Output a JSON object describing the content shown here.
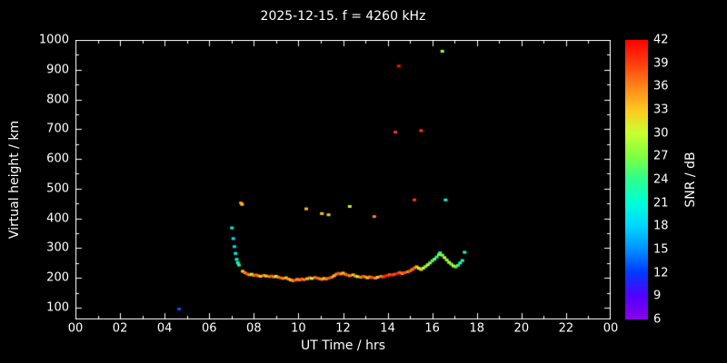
{
  "chart_data": {
    "type": "scatter",
    "title": "2025-12-15. f = 4260 kHz",
    "xlabel": "UT Time / hrs",
    "ylabel": "Virtual height / km",
    "colorbar_label": "SNR / dB",
    "background": "#000000",
    "foreground": "#ffffff",
    "grid": false,
    "legend": "colorbar-right",
    "xlim": [
      0,
      24
    ],
    "ylim": [
      60,
      1000
    ],
    "x_tick_values": [
      0,
      2,
      4,
      6,
      8,
      10,
      12,
      14,
      16,
      18,
      20,
      22,
      24
    ],
    "x_tick_labels": [
      "00",
      "02",
      "04",
      "06",
      "08",
      "10",
      "12",
      "14",
      "16",
      "18",
      "20",
      "22",
      "00"
    ],
    "y_tick_values": [
      100,
      200,
      300,
      400,
      500,
      600,
      700,
      800,
      900,
      1000
    ],
    "colorbar_range": [
      6,
      42
    ],
    "colorbar_tick_values": [
      6,
      9,
      12,
      15,
      18,
      21,
      24,
      27,
      30,
      33,
      36,
      39,
      42
    ],
    "colormap_stops": [
      [
        6,
        "#8800e8"
      ],
      [
        9,
        "#5400ff"
      ],
      [
        12,
        "#0038ff"
      ],
      [
        15,
        "#0090ff"
      ],
      [
        18,
        "#00d4ff"
      ],
      [
        21,
        "#00ffd9"
      ],
      [
        24,
        "#2bff8f"
      ],
      [
        27,
        "#80ff40"
      ],
      [
        30,
        "#c8ff2e"
      ],
      [
        33,
        "#ffc821"
      ],
      [
        36,
        "#ff8519"
      ],
      [
        39,
        "#ff3c0d"
      ],
      [
        42,
        "#ff0000"
      ]
    ],
    "points_format": [
      "ut_hours",
      "virtual_height_km",
      "snr_db"
    ],
    "points": [
      [
        4.65,
        95,
        13
      ],
      [
        7.02,
        368,
        20
      ],
      [
        7.08,
        332,
        19
      ],
      [
        7.13,
        305,
        18
      ],
      [
        7.18,
        282,
        20
      ],
      [
        7.23,
        262,
        21
      ],
      [
        7.28,
        251,
        22
      ],
      [
        7.33,
        243,
        24
      ],
      [
        7.42,
        452,
        36
      ],
      [
        7.47,
        447,
        33
      ],
      [
        7.5,
        222,
        33
      ],
      [
        7.6,
        217,
        36
      ],
      [
        7.7,
        213,
        38
      ],
      [
        7.8,
        210,
        36
      ],
      [
        7.9,
        212,
        30
      ],
      [
        8.0,
        208,
        36
      ],
      [
        8.1,
        210,
        38
      ],
      [
        8.2,
        207,
        36
      ],
      [
        8.3,
        205,
        33
      ],
      [
        8.45,
        208,
        36
      ],
      [
        8.55,
        206,
        33
      ],
      [
        8.7,
        204,
        36
      ],
      [
        8.8,
        206,
        38
      ],
      [
        8.9,
        203,
        36
      ],
      [
        9.0,
        205,
        30
      ],
      [
        9.1,
        202,
        36
      ],
      [
        9.2,
        200,
        38
      ],
      [
        9.3,
        198,
        36
      ],
      [
        9.45,
        200,
        33
      ],
      [
        9.55,
        196,
        36
      ],
      [
        9.65,
        193,
        33
      ],
      [
        9.75,
        190,
        36
      ],
      [
        9.85,
        192,
        38
      ],
      [
        9.95,
        195,
        36
      ],
      [
        10.05,
        193,
        36
      ],
      [
        10.15,
        196,
        38
      ],
      [
        10.25,
        194,
        36
      ],
      [
        10.35,
        432,
        34
      ],
      [
        10.4,
        197,
        33
      ],
      [
        10.5,
        200,
        36
      ],
      [
        10.6,
        198,
        30
      ],
      [
        10.75,
        201,
        36
      ],
      [
        10.85,
        199,
        38
      ],
      [
        10.95,
        197,
        36
      ],
      [
        11.05,
        416,
        33
      ],
      [
        11.05,
        195,
        36
      ],
      [
        11.15,
        198,
        33
      ],
      [
        11.25,
        196,
        36
      ],
      [
        11.35,
        412,
        33
      ],
      [
        11.35,
        199,
        38
      ],
      [
        11.5,
        202,
        36
      ],
      [
        11.6,
        207,
        33
      ],
      [
        11.7,
        212,
        36
      ],
      [
        11.8,
        215,
        38
      ],
      [
        11.9,
        213,
        36
      ],
      [
        12.0,
        216,
        33
      ],
      [
        12.1,
        212,
        36
      ],
      [
        12.2,
        209,
        38
      ],
      [
        12.3,
        440,
        29
      ],
      [
        12.3,
        207,
        36
      ],
      [
        12.45,
        210,
        33
      ],
      [
        12.55,
        206,
        36
      ],
      [
        12.65,
        204,
        30
      ],
      [
        12.8,
        202,
        36
      ],
      [
        12.9,
        205,
        38
      ],
      [
        13.0,
        203,
        36
      ],
      [
        13.1,
        200,
        33
      ],
      [
        13.2,
        203,
        36
      ],
      [
        13.3,
        201,
        38
      ],
      [
        13.4,
        406,
        36
      ],
      [
        13.45,
        199,
        36
      ],
      [
        13.55,
        202,
        33
      ],
      [
        13.7,
        205,
        36
      ],
      [
        13.8,
        203,
        38
      ],
      [
        13.9,
        206,
        40
      ],
      [
        14.0,
        208,
        40
      ],
      [
        14.1,
        211,
        38
      ],
      [
        14.2,
        209,
        40
      ],
      [
        14.3,
        212,
        38
      ],
      [
        14.35,
        690,
        39
      ],
      [
        14.45,
        215,
        40
      ],
      [
        14.5,
        912,
        41
      ],
      [
        14.55,
        218,
        38
      ],
      [
        14.65,
        214,
        36
      ],
      [
        14.75,
        217,
        38
      ],
      [
        14.9,
        220,
        36
      ],
      [
        15.0,
        223,
        38
      ],
      [
        15.1,
        228,
        36
      ],
      [
        15.2,
        462,
        39
      ],
      [
        15.2,
        233,
        38
      ],
      [
        15.3,
        237,
        33
      ],
      [
        15.4,
        232,
        30
      ],
      [
        15.5,
        695,
        39
      ],
      [
        15.5,
        228,
        33
      ],
      [
        15.6,
        233,
        30
      ],
      [
        15.7,
        238,
        27
      ],
      [
        15.8,
        244,
        30
      ],
      [
        15.9,
        250,
        27
      ],
      [
        16.0,
        257,
        24
      ],
      [
        16.1,
        263,
        27
      ],
      [
        16.2,
        270,
        24
      ],
      [
        16.3,
        278,
        27
      ],
      [
        16.35,
        284,
        24
      ],
      [
        16.45,
        962,
        28
      ],
      [
        16.45,
        276,
        27
      ],
      [
        16.55,
        268,
        30
      ],
      [
        16.6,
        462,
        21
      ],
      [
        16.65,
        260,
        27
      ],
      [
        16.75,
        252,
        30
      ],
      [
        16.85,
        246,
        27
      ],
      [
        16.95,
        240,
        30
      ],
      [
        17.05,
        237,
        27
      ],
      [
        17.15,
        242,
        24
      ],
      [
        17.25,
        250,
        21
      ],
      [
        17.35,
        258,
        24
      ],
      [
        17.45,
        286,
        21
      ]
    ]
  }
}
